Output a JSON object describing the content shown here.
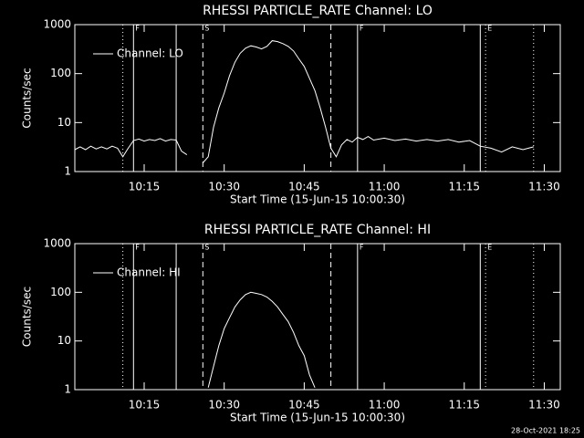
{
  "chart_data": [
    {
      "type": "line",
      "title": "RHESSI PARTICLE_RATE Channel: LO",
      "xlabel": "Start Time (15-Jun-15 10:00:30)",
      "ylabel": "Counts/sec",
      "log_y": true,
      "ylim": [
        1,
        1000
      ],
      "yticks": [
        1,
        10,
        100,
        1000
      ],
      "xlim": [
        "10:02",
        "11:33"
      ],
      "xticks": [
        "10:15",
        "10:30",
        "10:45",
        "11:00",
        "11:15",
        "11:30"
      ],
      "legend": "upper left",
      "markers": [
        {
          "x": "10:11",
          "style": "dotted"
        },
        {
          "x": "10:13",
          "style": "solid",
          "label": "F"
        },
        {
          "x": "10:21",
          "style": "solid"
        },
        {
          "x": "10:26",
          "style": "dashed",
          "label": "S"
        },
        {
          "x": "10:50",
          "style": "dashed"
        },
        {
          "x": "10:55",
          "style": "solid",
          "label": "F"
        },
        {
          "x": "11:18",
          "style": "solid"
        },
        {
          "x": "11:19",
          "style": "dotted",
          "label": "E"
        },
        {
          "x": "11:28",
          "style": "dotted"
        }
      ],
      "x": [
        "10:02",
        "10:03",
        "10:04",
        "10:05",
        "10:06",
        "10:07",
        "10:08",
        "10:09",
        "10:10",
        "10:11",
        "10:12",
        "10:13",
        "10:14",
        "10:15",
        "10:16",
        "10:17",
        "10:18",
        "10:19",
        "10:20",
        "10:21",
        "10:22",
        "10:23",
        "10:24",
        "10:25",
        "10:26",
        "10:27",
        "10:28",
        "10:29",
        "10:30",
        "10:31",
        "10:32",
        "10:33",
        "10:34",
        "10:35",
        "10:36",
        "10:37",
        "10:38",
        "10:39",
        "10:40",
        "10:41",
        "10:42",
        "10:43",
        "10:44",
        "10:45",
        "10:46",
        "10:47",
        "10:48",
        "10:49",
        "10:50",
        "10:51",
        "10:52",
        "10:53",
        "10:54",
        "10:55",
        "10:56",
        "10:57",
        "10:58",
        "11:00",
        "11:02",
        "11:04",
        "11:06",
        "11:08",
        "11:10",
        "11:12",
        "11:14",
        "11:16",
        "11:18",
        "11:20",
        "11:22",
        "11:24",
        "11:26",
        "11:28"
      ],
      "series": [
        {
          "name": "Channel: LO",
          "color": "#ffffff",
          "values": [
            2.8,
            3.2,
            2.8,
            3.3,
            2.9,
            3.2,
            2.9,
            3.3,
            3,
            2,
            3,
            4.3,
            4.6,
            4.2,
            4.5,
            4.3,
            4.7,
            4.2,
            4.5,
            4.4,
            2.6,
            2.2,
            null,
            null,
            1.5,
            2,
            8,
            20,
            40,
            90,
            170,
            260,
            330,
            370,
            350,
            320,
            360,
            470,
            450,
            410,
            360,
            290,
            200,
            140,
            80,
            45,
            20,
            8,
            3,
            2,
            3.5,
            4.5,
            4,
            5,
            4.5,
            5.2,
            4.4,
            4.8,
            4.3,
            4.6,
            4.2,
            4.5,
            4.2,
            4.5,
            4,
            4.3,
            3.3,
            3,
            2.5,
            3.2,
            2.8,
            3.2
          ]
        }
      ]
    },
    {
      "type": "line",
      "title": "RHESSI PARTICLE_RATE Channel: HI",
      "xlabel": "Start Time (15-Jun-15 10:00:30)",
      "ylabel": "Counts/sec",
      "log_y": true,
      "ylim": [
        1,
        1000
      ],
      "yticks": [
        1,
        10,
        100,
        1000
      ],
      "xlim": [
        "10:02",
        "11:33"
      ],
      "xticks": [
        "10:15",
        "10:30",
        "10:45",
        "11:00",
        "11:15",
        "11:30"
      ],
      "legend": "upper left",
      "markers": [
        {
          "x": "10:11",
          "style": "dotted"
        },
        {
          "x": "10:13",
          "style": "solid",
          "label": "F"
        },
        {
          "x": "10:21",
          "style": "solid"
        },
        {
          "x": "10:26",
          "style": "dashed",
          "label": "S"
        },
        {
          "x": "10:50",
          "style": "dashed"
        },
        {
          "x": "10:55",
          "style": "solid",
          "label": "F"
        },
        {
          "x": "11:18",
          "style": "solid"
        },
        {
          "x": "11:19",
          "style": "dotted",
          "label": "E"
        },
        {
          "x": "11:28",
          "style": "dotted"
        }
      ],
      "x": [
        "10:27",
        "10:28",
        "10:29",
        "10:30",
        "10:31",
        "10:32",
        "10:33",
        "10:34",
        "10:35",
        "10:36",
        "10:37",
        "10:38",
        "10:39",
        "10:40",
        "10:41",
        "10:42",
        "10:43",
        "10:44",
        "10:45",
        "10:46",
        "10:47"
      ],
      "series": [
        {
          "name": "Channel: HI",
          "color": "#ffffff",
          "values": [
            1.1,
            3,
            8,
            18,
            30,
            50,
            70,
            90,
            100,
            95,
            90,
            80,
            65,
            50,
            35,
            25,
            15,
            8,
            5,
            2,
            1.1
          ]
        }
      ]
    }
  ],
  "footer": "28-Oct-2021 18:25"
}
